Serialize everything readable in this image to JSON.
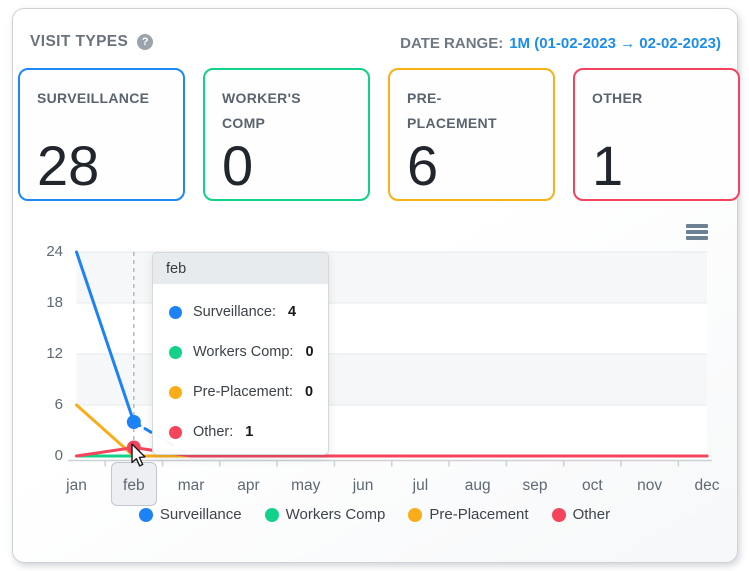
{
  "header": {
    "title": "VISIT TYPES",
    "help_glyph": "?",
    "date_range_label": "DATE RANGE:",
    "date_range_value": "1M (01-02-2023 → 02-02-2023)"
  },
  "cards": [
    {
      "label": "SURVEILLANCE",
      "value": "28",
      "border_color": "#1e88f7"
    },
    {
      "label": "WORKER'S COMP",
      "value": "0",
      "border_color": "#11d288"
    },
    {
      "label": "PRE-PLACEMENT",
      "value": "6",
      "border_color": "#f9b116"
    },
    {
      "label": "OTHER",
      "value": "1",
      "border_color": "#f5425f"
    }
  ],
  "chart_data": {
    "type": "line",
    "categories": [
      "jan",
      "feb",
      "mar",
      "apr",
      "may",
      "jun",
      "jul",
      "aug",
      "sep",
      "oct",
      "nov",
      "dec"
    ],
    "series": [
      {
        "name": "Surveillance",
        "color": "#1d82f5",
        "values": [
          24,
          4,
          0,
          0,
          0,
          0,
          0,
          0,
          0,
          0,
          0,
          0
        ],
        "marker_index": 1,
        "dashed_segment": [
          1,
          2
        ]
      },
      {
        "name": "Workers Comp",
        "color": "#12d189",
        "values": [
          0,
          0,
          0,
          0,
          0,
          0,
          0,
          0,
          0,
          0,
          0,
          0
        ]
      },
      {
        "name": "Pre-Placement",
        "color": "#f9ad18",
        "values": [
          6,
          0,
          0,
          0,
          0,
          0,
          0,
          0,
          0,
          0,
          0,
          0
        ]
      },
      {
        "name": "Other",
        "color": "#f5455c",
        "values": [
          0,
          1,
          0,
          0,
          0,
          0,
          0,
          0,
          0,
          0,
          0,
          0
        ],
        "marker_index": 1
      }
    ],
    "ylim": [
      0,
      24
    ],
    "yticks": [
      0,
      6,
      12,
      18,
      24
    ],
    "grid": "horizontal gridlines with alternating shaded bands",
    "legend_position": "bottom",
    "highlighted_category": "feb",
    "highlighted_index": 1
  },
  "tooltip": {
    "title": "feb",
    "rows": [
      {
        "label": "Surveillance:",
        "value": "4",
        "color": "#1d82f5"
      },
      {
        "label": "Workers Comp:",
        "value": "0",
        "color": "#12d189"
      },
      {
        "label": "Pre-Placement:",
        "value": "0",
        "color": "#f9ad18"
      },
      {
        "label": "Other:",
        "value": "1",
        "color": "#f5455c"
      }
    ]
  },
  "legend": {
    "items": [
      {
        "label": "Surveillance",
        "color": "#1d82f5"
      },
      {
        "label": "Workers Comp",
        "color": "#12d189"
      },
      {
        "label": "Pre-Placement",
        "color": "#f9ad18"
      },
      {
        "label": "Other",
        "color": "#f5455c"
      }
    ]
  }
}
